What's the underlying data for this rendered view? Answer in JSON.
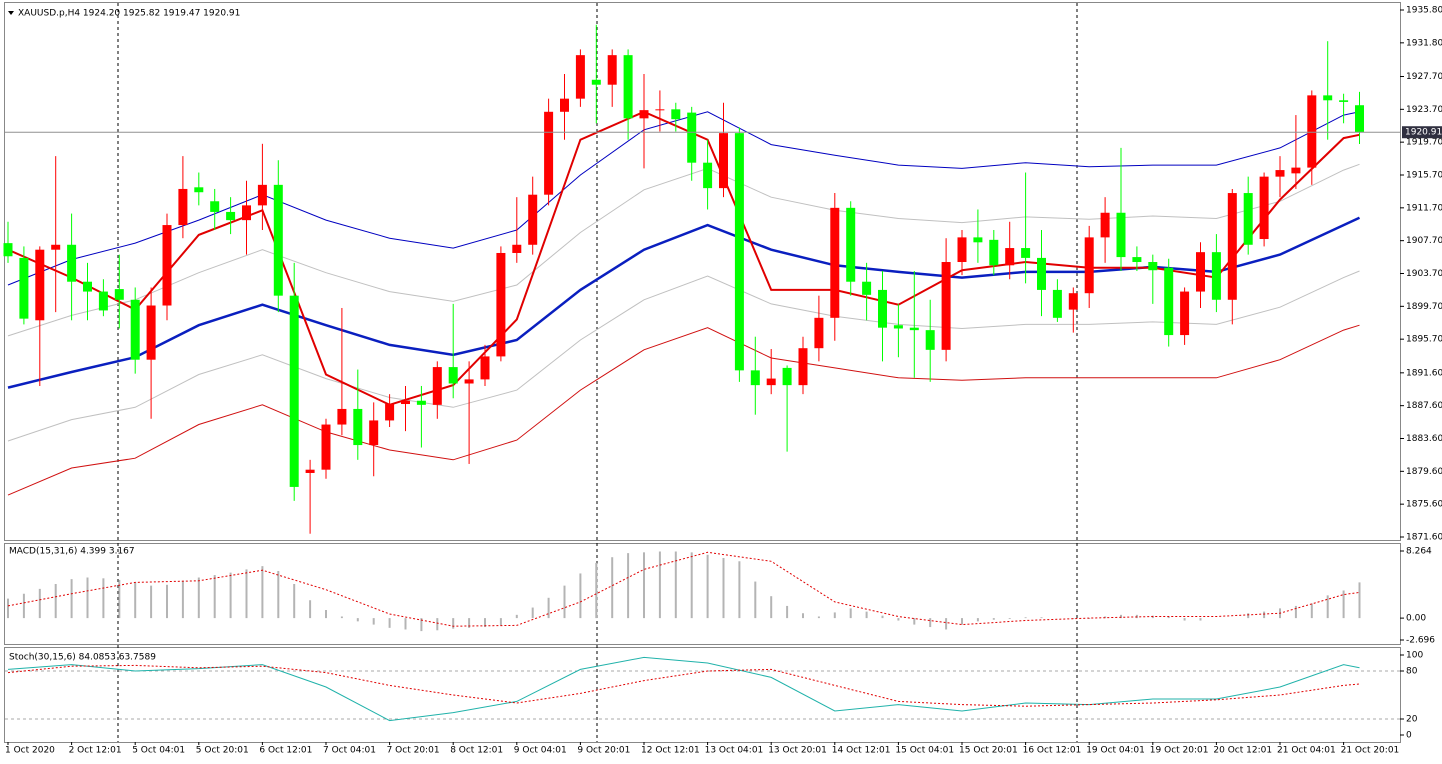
{
  "chart_data": [
    {
      "type": "candlestick",
      "title": "XAUUSD.p,H4  1924.20 1925.82 1919.47 1920.91",
      "categories": [
        "1 Oct 2020",
        null,
        null,
        null,
        "2 Oct 12:01",
        null,
        null,
        null,
        "5 Oct 04:01",
        null,
        null,
        null,
        "5 Oct 20:01",
        null,
        null,
        null,
        "6 Oct 12:01",
        null,
        null,
        null,
        "7 Oct 04:01",
        null,
        null,
        null,
        "7 Oct 20:01",
        null,
        null,
        null,
        "8 Oct 12:01",
        null,
        null,
        null,
        "9 Oct 04:01",
        null,
        null,
        null,
        "9 Oct 20:01",
        null,
        null,
        null,
        "12 Oct 12:01",
        null,
        null,
        null,
        "13 Oct 04:01",
        null,
        null,
        null,
        "13 Oct 20:01",
        null,
        null,
        null,
        "14 Oct 12:01",
        null,
        null,
        null,
        "15 Oct 04:01",
        null,
        null,
        null,
        "15 Oct 20:01",
        null,
        null,
        null,
        "16 Oct 12:01",
        null,
        null,
        null,
        "19 Oct 04:01",
        null,
        null,
        null,
        "19 Oct 20:01",
        null,
        null,
        null,
        "20 Oct 12:01",
        null,
        null,
        null,
        "21 Oct 04:01",
        null,
        null,
        null,
        "21 Oct 20:01",
        null
      ],
      "open": [
        1907.4,
        1905.6,
        1898,
        1906.6,
        1907.2,
        1902.7,
        1901.5,
        1901.8,
        1900.5,
        1893.2,
        1899.8,
        1909.6,
        1914.2,
        1912.5,
        1911.2,
        1910.2,
        1912,
        1914.5,
        1901,
        1879.4,
        1879.8,
        1885.3,
        1887.2,
        1882.8,
        1885.8,
        1887.8,
        1888.2,
        1887.7,
        1892.3,
        1890.3,
        1890.8,
        1893.6,
        1906.2,
        1907.2,
        1913.3,
        1923.4,
        1925,
        1927.3,
        1926.7,
        1930.3,
        1922.6,
        1923.6,
        1923.7,
        1923.3,
        1917.2,
        1914.1,
        1920.8,
        1891.9,
        1890.1,
        1892.2,
        1890.1,
        1894.6,
        1898.3,
        1911.7,
        1902.7,
        1901.7,
        1897.4,
        1897.1,
        1896.8,
        1894.4,
        1905.1,
        1908.1,
        1907.8,
        1904.7,
        1906.8,
        1905.6,
        1901.7,
        1899.3,
        1901.3,
        1908.1,
        1911.1,
        1905.7,
        1905.1,
        1904.4,
        1896.2,
        1901.5,
        1906.3,
        1900.5,
        1913.5,
        1907.9,
        1915.5,
        1915.9,
        1916.6,
        1925.4,
        1924.8,
        1924.2
      ],
      "high": [
        1910,
        1907,
        1907,
        1918,
        1911,
        1905,
        1903,
        1906,
        1902,
        1902,
        1911,
        1918,
        1916,
        1914,
        1913,
        1915,
        1919.5,
        1917.5,
        1905,
        1881,
        1886,
        1899.5,
        1892,
        1888,
        1889,
        1890,
        1890,
        1893,
        1900,
        1893,
        1895,
        1907,
        1913,
        1915.5,
        1925,
        1928,
        1931,
        1934,
        1931,
        1931,
        1928,
        1926,
        1924.5,
        1924,
        1920,
        1924.5,
        1921.5,
        1896,
        1894.5,
        1892.5,
        1896,
        1901,
        1913.5,
        1912.5,
        1905,
        1904,
        1900,
        1904,
        1900.5,
        1908,
        1909,
        1911.5,
        1909,
        1910,
        1916,
        1909,
        1903,
        1902,
        1909.5,
        1913,
        1919,
        1907,
        1906,
        1905.5,
        1902,
        1907.5,
        1908.5,
        1914,
        1915.5,
        1916,
        1918,
        1923,
        1926,
        1932,
        1925.6,
        1925.82
      ],
      "low": [
        1905,
        1897.5,
        1890,
        1899,
        1898,
        1898,
        1898.5,
        1897,
        1891.5,
        1886,
        1898,
        1908,
        1912,
        1909,
        1908.5,
        1906,
        1909,
        1899,
        1876,
        1872,
        1878.7,
        1884,
        1881,
        1879,
        1885,
        1884.5,
        1882.5,
        1886,
        1888.5,
        1880.5,
        1890,
        1893,
        1905,
        1906,
        1912,
        1920,
        1924,
        1922,
        1924,
        1920,
        1916.5,
        1921,
        1921,
        1915,
        1911.5,
        1913,
        1890.5,
        1886.5,
        1889,
        1882,
        1889,
        1893,
        1895.5,
        1901,
        1898,
        1893,
        1893.5,
        1891,
        1890.5,
        1893,
        1903.5,
        1905,
        1903.5,
        1903,
        1902.5,
        1898.5,
        1897.8,
        1896.5,
        1899.5,
        1905,
        1904,
        1904,
        1900,
        1894.8,
        1895,
        1899.5,
        1899,
        1897.5,
        1906,
        1907,
        1913,
        1914,
        1914.5,
        1920,
        1922,
        1919.47
      ],
      "close": [
        1905.8,
        1898.2,
        1906.6,
        1907.2,
        1902.7,
        1901.5,
        1899.2,
        1900.5,
        1893.2,
        1899.8,
        1909.6,
        1914,
        1913.6,
        1911.2,
        1910.2,
        1912,
        1914.5,
        1901,
        1877.7,
        1879.8,
        1885.3,
        1887.2,
        1882.8,
        1885.8,
        1887.8,
        1888.2,
        1887.7,
        1892.3,
        1890.3,
        1890.8,
        1893.6,
        1906.2,
        1907.2,
        1913.3,
        1923.4,
        1925,
        1930.3,
        1926.7,
        1930.3,
        1922.6,
        1923.6,
        1923.7,
        1922.5,
        1917.2,
        1914.1,
        1920.8,
        1891.9,
        1890.1,
        1890.9,
        1890.1,
        1894.6,
        1898.3,
        1911.7,
        1902.7,
        1901.1,
        1897.1,
        1897,
        1896.8,
        1894.4,
        1905.1,
        1908.1,
        1907.5,
        1904.7,
        1906.8,
        1905.6,
        1901.7,
        1898.3,
        1901.3,
        1908.1,
        1911.1,
        1905.7,
        1905.1,
        1904.1,
        1896.2,
        1901.5,
        1906.3,
        1900.5,
        1913.5,
        1907.2,
        1915.5,
        1916.3,
        1916.6,
        1925.4,
        1924.8,
        1924.6,
        1920.91
      ],
      "up_color": "#ff0000",
      "down_color": "#00ff00",
      "series": [
        {
          "color": "#c0c0c0",
          "width": 1,
          "x": [
            0,
            4,
            8,
            12,
            16,
            20,
            24,
            28,
            32,
            36,
            40,
            44,
            48,
            52,
            56,
            60,
            64,
            68,
            72,
            76,
            80,
            84,
            85
          ],
          "values": [
            1896.1,
            1898.6,
            1900.5,
            1903.8,
            1906.6,
            1903.8,
            1901.5,
            1900.3,
            1902.3,
            1908.7,
            1913.9,
            1916.5,
            1913,
            1911.4,
            1910.4,
            1909.9,
            1910.6,
            1910.3,
            1910.7,
            1910.4,
            1912.5,
            1916.3,
            1917
          ]
        },
        {
          "color": "#c0c0c0",
          "width": 1,
          "x": [
            0,
            4,
            8,
            12,
            16,
            20,
            24,
            28,
            32,
            36,
            40,
            44,
            48,
            52,
            56,
            60,
            64,
            68,
            72,
            76,
            80,
            84,
            85
          ],
          "values": [
            1883.3,
            1885.9,
            1887.4,
            1891.4,
            1893.8,
            1890.9,
            1888.6,
            1887.4,
            1889.5,
            1895.6,
            1900.5,
            1903.4,
            1900,
            1898.5,
            1897.5,
            1897,
            1897.5,
            1897.5,
            1897.8,
            1897.5,
            1899.6,
            1903.2,
            1904
          ]
        },
        {
          "color": "#0000c0",
          "width": 1,
          "x": [
            0,
            4,
            8,
            12,
            16,
            20,
            24,
            28,
            32,
            36,
            40,
            44,
            48,
            52,
            56,
            60,
            64,
            68,
            72,
            76,
            80,
            84,
            85
          ],
          "values": [
            1902.3,
            1905.4,
            1907.4,
            1910.2,
            1913.3,
            1910.2,
            1908,
            1906.8,
            1909,
            1915.7,
            1921.2,
            1923.4,
            1919.4,
            1918.1,
            1916.9,
            1916.5,
            1917.2,
            1916.7,
            1916.9,
            1916.9,
            1919,
            1923,
            1923.4
          ]
        },
        {
          "color": "#d01010",
          "width": 1,
          "x": [
            0,
            4,
            8,
            12,
            16,
            20,
            24,
            28,
            32,
            36,
            40,
            44,
            48,
            52,
            56,
            60,
            64,
            68,
            72,
            76,
            80,
            84,
            85
          ],
          "values": [
            1876.7,
            1880,
            1881.2,
            1885.3,
            1887.7,
            1884.4,
            1882.2,
            1881,
            1883.4,
            1889.5,
            1894.4,
            1897.1,
            1893.4,
            1892.2,
            1891,
            1890.7,
            1891,
            1891,
            1891,
            1891,
            1893.2,
            1896.8,
            1897.4
          ]
        },
        {
          "color": "#0a1fbf",
          "width": 2.5,
          "x": [
            0,
            4,
            8,
            12,
            16,
            20,
            24,
            28,
            32,
            36,
            40,
            44,
            48,
            52,
            56,
            60,
            64,
            68,
            72,
            76,
            80,
            84,
            85
          ],
          "values": [
            1889.8,
            1891.7,
            1893.5,
            1897.4,
            1899.9,
            1897.4,
            1895,
            1893.8,
            1895.6,
            1901.7,
            1906.6,
            1909.6,
            1906.6,
            1904.7,
            1903.9,
            1903.2,
            1903.9,
            1903.9,
            1904.5,
            1903.9,
            1906,
            1909.6,
            1910.5
          ]
        },
        {
          "color": "#e00000",
          "width": 2,
          "x": [
            0,
            4,
            8,
            12,
            16,
            20,
            24,
            28,
            32,
            36,
            40,
            44,
            48,
            52,
            56,
            60,
            64,
            68,
            72,
            76,
            80,
            84,
            85
          ],
          "values": [
            1906.6,
            1903.2,
            1899.3,
            1908.4,
            1911.4,
            1891.4,
            1887.7,
            1890.1,
            1898.1,
            1920,
            1923.4,
            1920,
            1901.7,
            1901.7,
            1899.9,
            1904.1,
            1905.1,
            1904.4,
            1904.4,
            1903.2,
            1912.7,
            1920.2,
            1920.6
          ]
        }
      ],
      "current_price": 1920.91,
      "ylim": [
        1871.6,
        1935.8
      ],
      "yticks": [
        {
          "value": 1935.8,
          "label": "1935.80"
        },
        {
          "value": 1931.8,
          "label": "1931.80"
        },
        {
          "value": 1927.7,
          "label": "1927.70"
        },
        {
          "value": 1923.7,
          "label": "1923.70"
        },
        {
          "value": 1919.7,
          "label": "1919.70"
        },
        {
          "value": 1915.7,
          "label": "1915.70"
        },
        {
          "value": 1911.7,
          "label": "1911.70"
        },
        {
          "value": 1907.7,
          "label": "1907.70"
        },
        {
          "value": 1903.7,
          "label": "1903.70"
        },
        {
          "value": 1899.7,
          "label": "1899.70"
        },
        {
          "value": 1895.7,
          "label": "1895.70"
        },
        {
          "value": 1891.6,
          "label": "1891.60"
        },
        {
          "value": 1887.6,
          "label": "1887.60"
        },
        {
          "value": 1883.6,
          "label": "1883.60"
        },
        {
          "value": 1879.6,
          "label": "1879.60"
        },
        {
          "value": 1875.6,
          "label": "1875.60"
        },
        {
          "value": 1871.6,
          "label": "1871.60"
        }
      ]
    },
    {
      "type": "macd",
      "title": "MACD(15,31,6) 4.399 3.167",
      "values": [
        2.4,
        3.0,
        3.6,
        4.2,
        4.8,
        5.0,
        4.9,
        4.7,
        4.4,
        4.0,
        4.1,
        4.6,
        5.0,
        5.3,
        5.6,
        6.0,
        6.4,
        5.8,
        4.2,
        2.2,
        1.0,
        0.2,
        -0.4,
        -0.8,
        -1.2,
        -1.4,
        -1.6,
        -1.5,
        -1.3,
        -1.2,
        -1.1,
        -0.9,
        0.4,
        1.3,
        2.5,
        4.0,
        5.5,
        6.8,
        7.5,
        8.0,
        8.1,
        8.2,
        8.2,
        8.1,
        7.8,
        7.4,
        7.0,
        4.5,
        2.7,
        1.5,
        0.6,
        0.2,
        0.7,
        1.2,
        0.8,
        0.3,
        -0.3,
        -0.8,
        -1.1,
        -1.4,
        -0.8,
        -0.4,
        -0.2,
        -0.1,
        0.1,
        0.1,
        0,
        -0.1,
        -0.1,
        0.2,
        0.4,
        0.4,
        0.3,
        0.2,
        -0.3,
        -0.3,
        0,
        0,
        0.6,
        0.8,
        1.2,
        1.5,
        1.8,
        2.8,
        3.4,
        4.399
      ],
      "color": "#b4b4b4",
      "signal": {
        "color": "#e00000",
        "x": [
          0,
          4,
          8,
          12,
          16,
          20,
          24,
          28,
          32,
          36,
          40,
          44,
          48,
          52,
          56,
          60,
          64,
          68,
          72,
          76,
          80,
          84,
          85
        ],
        "values": [
          1.5,
          3.0,
          4.4,
          4.6,
          5.9,
          3.5,
          0.5,
          -1.0,
          -0.9,
          2.0,
          6.0,
          8.1,
          7.0,
          2.0,
          0.2,
          -0.8,
          -0.3,
          0.0,
          0.2,
          0.2,
          0.6,
          2.9,
          3.167
        ]
      },
      "ylim": [
        -2.696,
        8.264
      ],
      "yticks": [
        8.264,
        {
          "value": 0,
          "label": "0.00"
        },
        -2.696
      ]
    },
    {
      "type": "stochastic",
      "title": "Stoch(30,15,6) 84.0853 63.7589",
      "series": [
        {
          "color": "#20b2aa",
          "dash": false,
          "x": [
            0,
            4,
            8,
            12,
            16,
            20,
            24,
            28,
            32,
            36,
            40,
            44,
            48,
            52,
            56,
            60,
            64,
            68,
            72,
            76,
            80,
            84,
            85
          ],
          "values": [
            82,
            88,
            80,
            83,
            88,
            60,
            18,
            28,
            42,
            82,
            97,
            90,
            72,
            30,
            38,
            30,
            40,
            38,
            45,
            45,
            60,
            88,
            84.0853
          ]
        },
        {
          "color": "#e00000",
          "dash": true,
          "x": [
            0,
            4,
            8,
            12,
            16,
            20,
            24,
            28,
            32,
            36,
            40,
            44,
            48,
            52,
            56,
            60,
            64,
            68,
            72,
            76,
            80,
            84,
            85
          ],
          "values": [
            78,
            86,
            87,
            84,
            86,
            78,
            62,
            50,
            40,
            52,
            68,
            80,
            82,
            62,
            42,
            38,
            36,
            38,
            40,
            44,
            50,
            62,
            63.7589
          ]
        }
      ],
      "ylim": [
        0,
        100
      ],
      "yticks": [
        100,
        80,
        20,
        0
      ]
    }
  ]
}
